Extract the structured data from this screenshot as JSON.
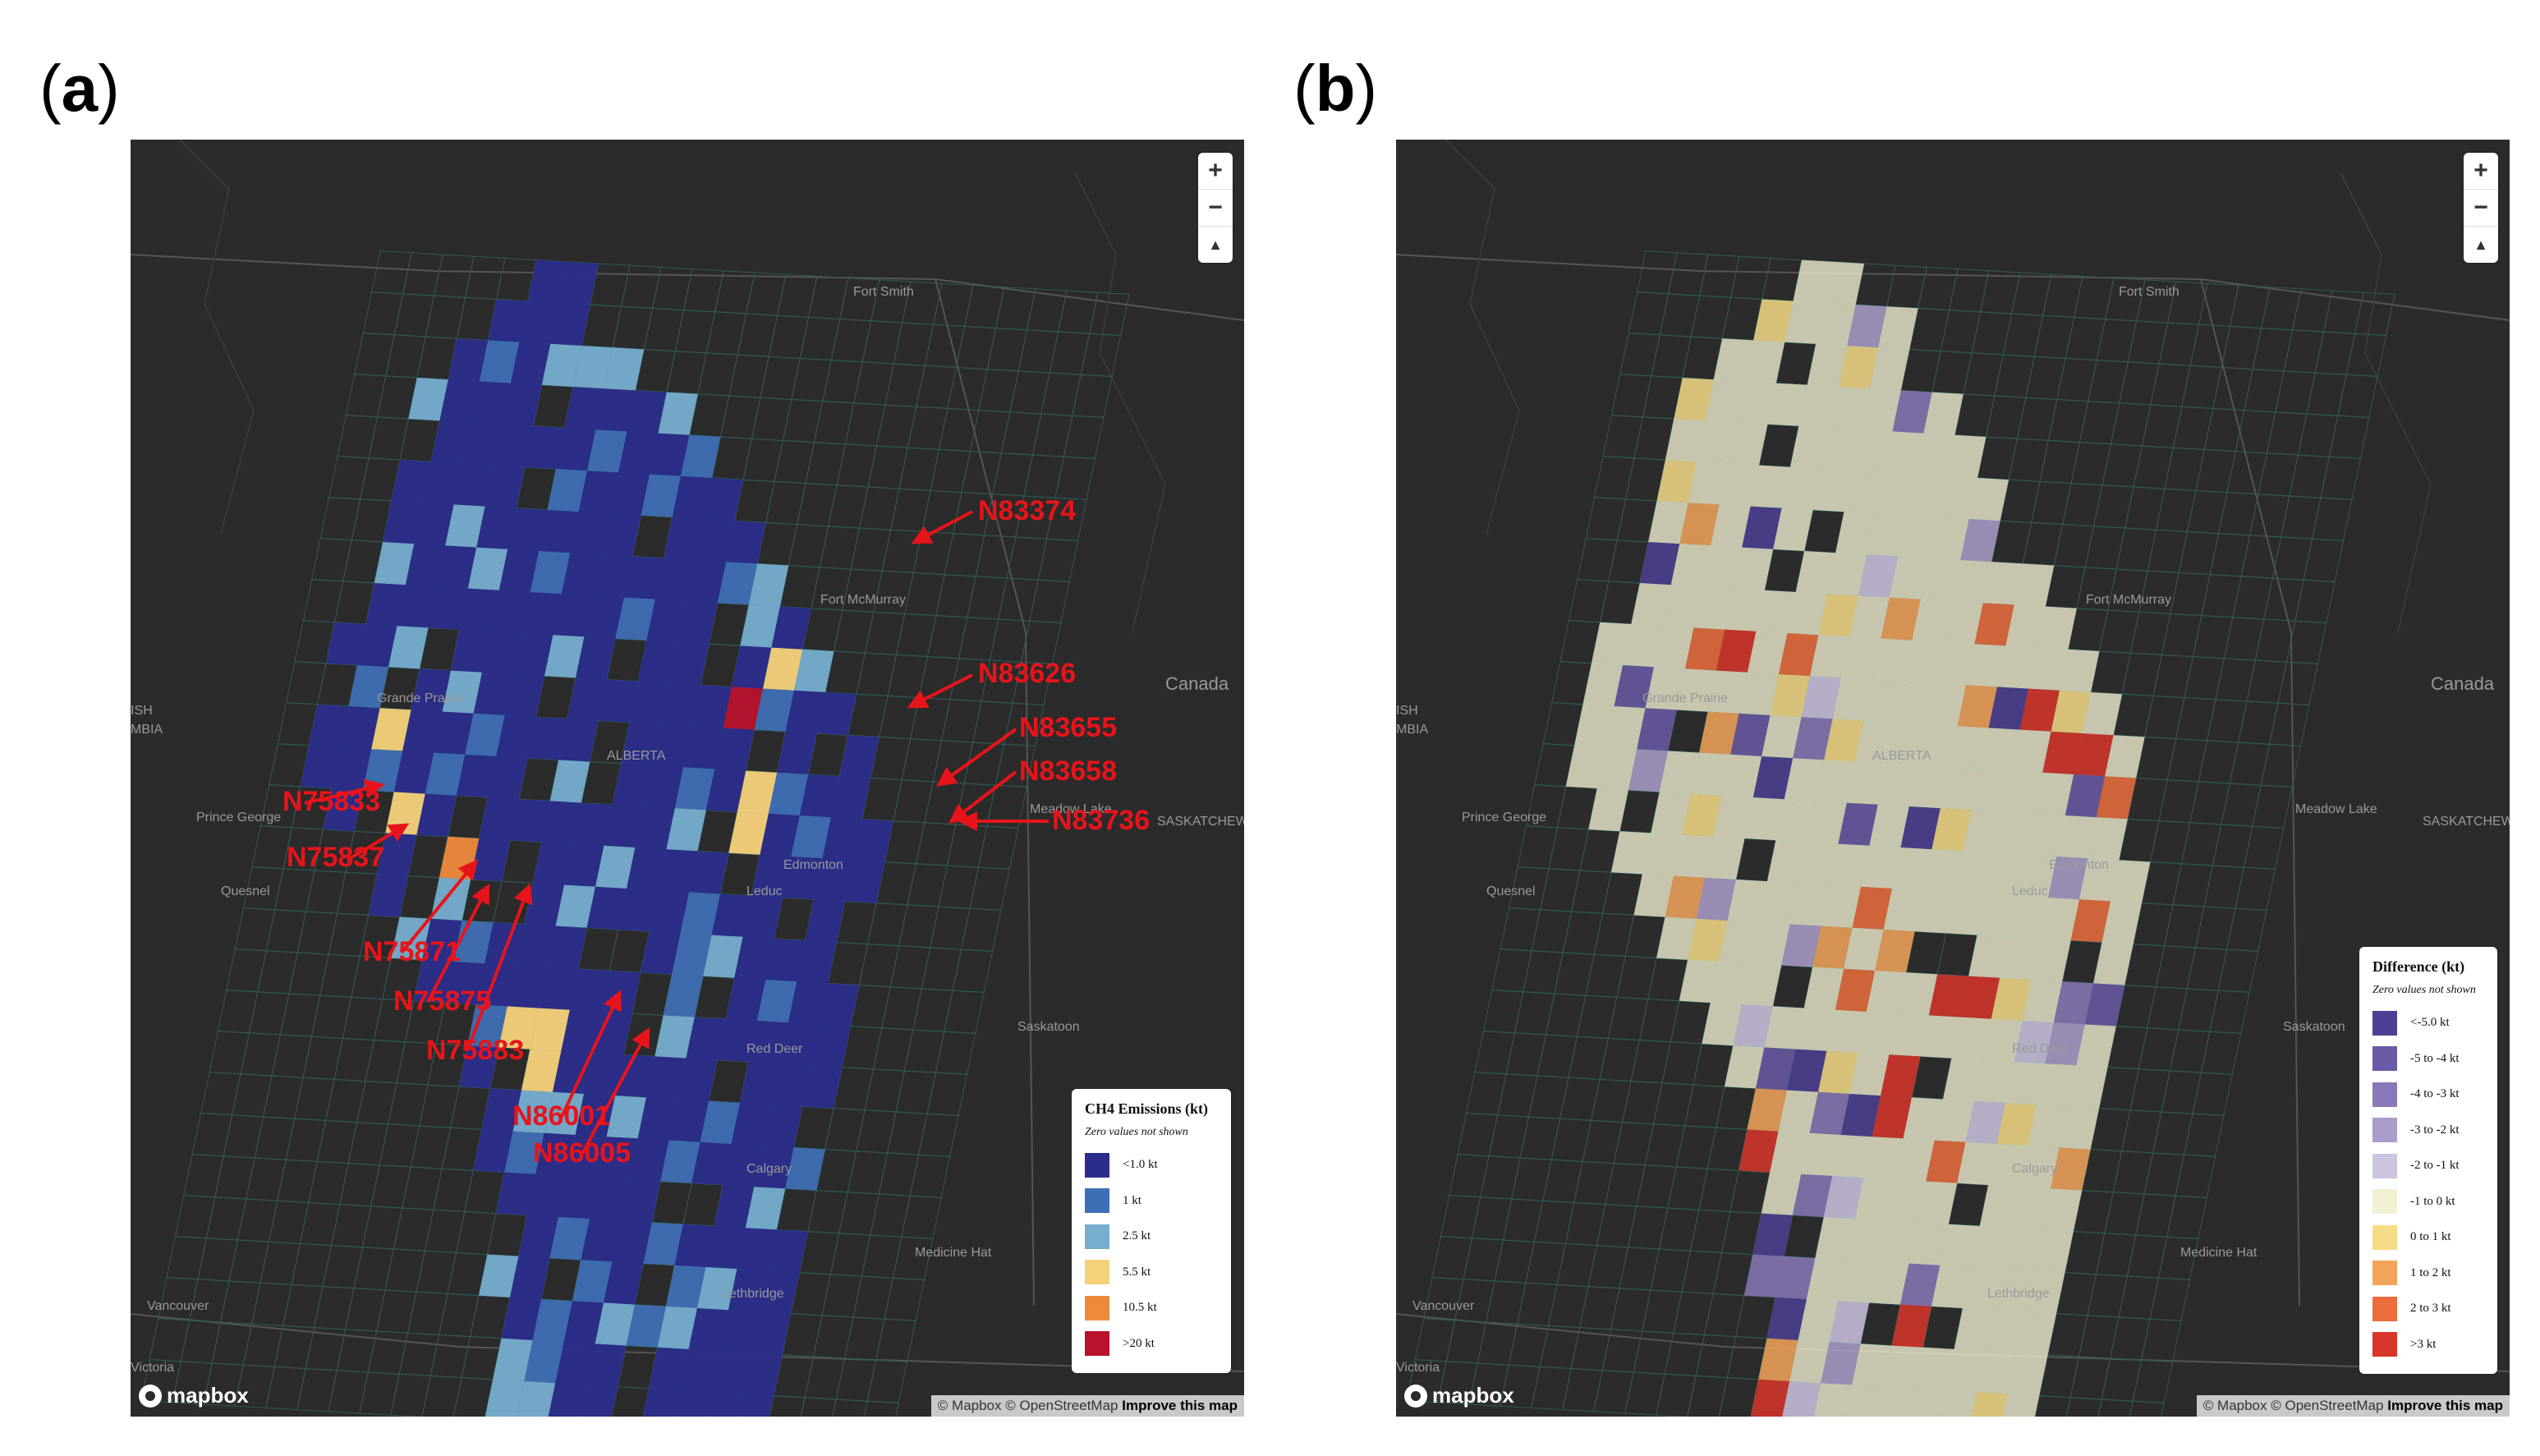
{
  "panels": {
    "a_label": "a",
    "b_label": "b"
  },
  "map_common": {
    "zoom_in": "+",
    "zoom_out": "−",
    "compass": "▲",
    "logo": "mapbox",
    "attribution": "© Mapbox © OpenStreetMap",
    "improve": "Improve this map",
    "place_labels": [
      "Fort Smith",
      "Fort McMurray",
      "Canada",
      "Grande Prairie",
      "ALBERTA",
      "Prince George",
      "SASKATCHEWA",
      "Meadow Lake",
      "Edmonton",
      "Leduc",
      "Quesnel",
      "Saskatoon",
      "Red Deer",
      "Calgary",
      "Medicine Hat",
      "Lethbridge",
      "Vancouver",
      "Victoria",
      "ISH",
      "MBIA"
    ]
  },
  "legend_a": {
    "title": "CH4 Emissions (kt)",
    "subtitle": "Zero values not shown",
    "items": [
      {
        "label": "<1.0 kt",
        "color": "#2b2d8c"
      },
      {
        "label": "1 kt",
        "color": "#3e6fb4"
      },
      {
        "label": "2.5 kt",
        "color": "#76aed0"
      },
      {
        "label": "5.5 kt",
        "color": "#f5d27a"
      },
      {
        "label": "10.5 kt",
        "color": "#ef8a3c"
      },
      {
        "label": ">20 kt",
        "color": "#b8122c"
      }
    ]
  },
  "legend_b": {
    "title": "Difference (kt)",
    "subtitle": "Zero values not shown",
    "items": [
      {
        "label": "<-5.0 kt",
        "color": "#4e3f94"
      },
      {
        "label": "-5 to -4 kt",
        "color": "#6b5aa6"
      },
      {
        "label": "-4 to -3 kt",
        "color": "#8a78b8"
      },
      {
        "label": "-3 to -2 kt",
        "color": "#ab9dcb"
      },
      {
        "label": "-2 to -1 kt",
        "color": "#cdc4e0"
      },
      {
        "label": "-1 to 0 kt",
        "color": "#f3f1d4"
      },
      {
        "label": "0 to 1 kt",
        "color": "#f6dc86"
      },
      {
        "label": "1 to 2 kt",
        "color": "#f3a45a"
      },
      {
        "label": "2 to 3 kt",
        "color": "#ec6d3c"
      },
      {
        "label": ">3 kt",
        "color": "#d8352a"
      }
    ]
  },
  "annotations": [
    "N83374",
    "N83626",
    "N83655",
    "N83658",
    "N83736",
    "N75833",
    "N75837",
    "N75871",
    "N75875",
    "N75883",
    "N86001",
    "N86005"
  ],
  "annotation_color": "#e8141b"
}
